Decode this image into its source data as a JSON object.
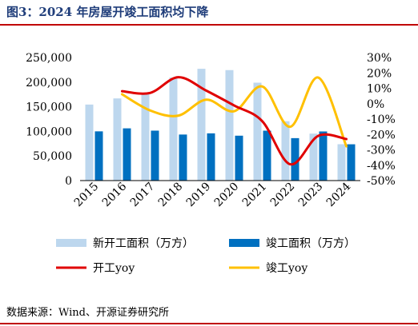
{
  "title": "图3：2024 年房屋开竣工面积均下降",
  "source": "数据来源：Wind、开源证券研究所",
  "colors": {
    "title": "#1f3d7a",
    "rule": "#c00000",
    "new_start_bar": "#bdd7ee",
    "completion_bar": "#0070c0",
    "start_yoy_line": "#e00000",
    "completion_yoy_line": "#ffc000"
  },
  "chart_data": {
    "type": "bar",
    "categories": [
      "2015",
      "2016",
      "2017",
      "2018",
      "2019",
      "2020",
      "2021",
      "2022",
      "2023",
      "2024"
    ],
    "series": [
      {
        "name": "新开工面积（万方）",
        "type": "bar",
        "axis": "left",
        "values": [
          154454,
          166928,
          178654,
          209342,
          227154,
          224433,
          198895,
          120587,
          95376,
          73893
        ]
      },
      {
        "name": "竣工面积（万方）",
        "type": "bar",
        "axis": "left",
        "values": [
          100039,
          106128,
          101486,
          93550,
          95942,
          91218,
          101412,
          86222,
          99831,
          73743
        ]
      },
      {
        "name": "开工yoy",
        "type": "line",
        "axis": "right",
        "values": [
          null,
          8.1,
          7.0,
          17.2,
          8.5,
          -1.2,
          -11.4,
          -39.4,
          -20.9,
          -23.0
        ]
      },
      {
        "name": "竣工yoy",
        "type": "line",
        "axis": "right",
        "values": [
          null,
          6.1,
          -4.4,
          -7.8,
          2.6,
          -4.9,
          11.2,
          -15.0,
          17.0,
          -27.7
        ]
      }
    ],
    "y_left": {
      "min": 0,
      "max": 250000,
      "ticks": [
        "0",
        "50,000",
        "100,000",
        "150,000",
        "200,000",
        "250,000"
      ]
    },
    "y_right": {
      "min": -50,
      "max": 30,
      "ticks": [
        "-50%",
        "-40%",
        "-30%",
        "-20%",
        "-10%",
        "0%",
        "10%",
        "20%",
        "30%"
      ]
    },
    "legend": [
      "新开工面积（万方）",
      "竣工面积（万方）",
      "开工yoy",
      "竣工yoy"
    ],
    "legend_position": "bottom"
  }
}
